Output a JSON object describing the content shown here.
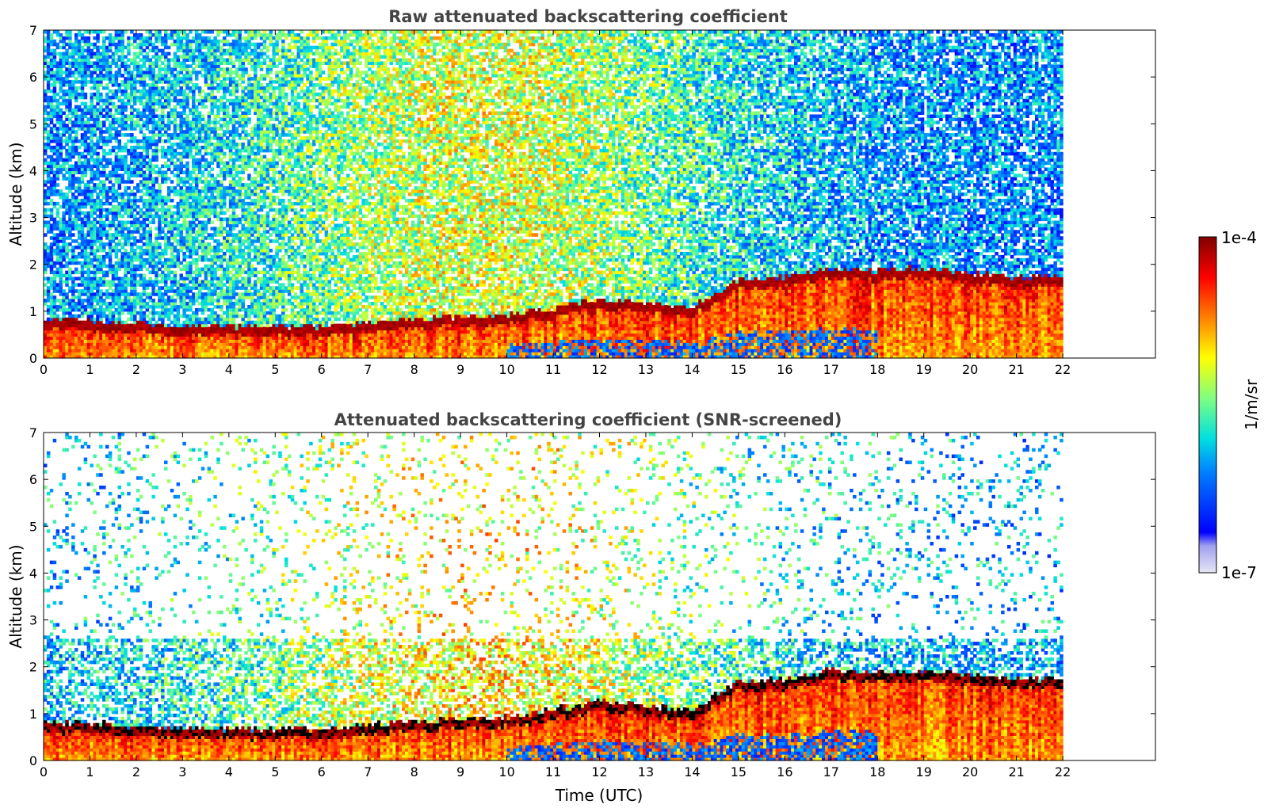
{
  "figure": {
    "colorbar": {
      "max_label": "1e-4",
      "min_label": "1e-7",
      "unit_label": "1/m/sr",
      "colormap": [
        "#e6e6f5",
        "#a0a0f0",
        "#0000ff",
        "#0080ff",
        "#00e0e0",
        "#80ff80",
        "#ffff00",
        "#ff8000",
        "#ff0000",
        "#800000"
      ]
    }
  },
  "chart_data": [
    {
      "type": "heatmap",
      "title": "Raw attenuated backscattering coefficient",
      "xlabel": "",
      "ylabel": "Altitude (km)",
      "xlim": [
        0,
        24
      ],
      "ylim": [
        0,
        7
      ],
      "xticks": [
        "0",
        "1",
        "2",
        "3",
        "4",
        "5",
        "6",
        "7",
        "8",
        "9",
        "10",
        "11",
        "12",
        "13",
        "14",
        "15",
        "16",
        "17",
        "18",
        "19",
        "20",
        "21",
        "22"
      ],
      "yticks": [
        "0",
        "1",
        "2",
        "3",
        "4",
        "5",
        "6",
        "7"
      ],
      "data_time_range": [
        0,
        22
      ],
      "colorscale": "log10",
      "vmin": 1e-07,
      "vmax": 0.0001,
      "layer_top_km": [
        [
          0,
          0.75
        ],
        [
          1,
          0.72
        ],
        [
          2,
          0.65
        ],
        [
          3,
          0.62
        ],
        [
          4,
          0.6
        ],
        [
          5,
          0.6
        ],
        [
          6,
          0.6
        ],
        [
          7,
          0.7
        ],
        [
          8,
          0.75
        ],
        [
          9,
          0.8
        ],
        [
          10,
          0.85
        ],
        [
          11,
          1.0
        ],
        [
          12,
          1.2
        ],
        [
          13,
          1.1
        ],
        [
          14,
          1.0
        ],
        [
          15,
          1.6
        ],
        [
          16,
          1.65
        ],
        [
          17,
          1.85
        ],
        [
          18,
          1.8
        ],
        [
          19,
          1.85
        ],
        [
          20,
          1.75
        ],
        [
          21,
          1.65
        ],
        [
          22,
          1.65
        ]
      ]
    },
    {
      "type": "heatmap",
      "title": "Attenuated backscattering coefficient (SNR-screened)",
      "xlabel": "Time (UTC)",
      "ylabel": "Altitude (km)",
      "xlim": [
        0,
        24
      ],
      "ylim": [
        0,
        7
      ],
      "xticks": [
        "0",
        "1",
        "2",
        "3",
        "4",
        "5",
        "6",
        "7",
        "8",
        "9",
        "10",
        "11",
        "12",
        "13",
        "14",
        "15",
        "16",
        "17",
        "18",
        "19",
        "20",
        "21",
        "22"
      ],
      "yticks": [
        "0",
        "1",
        "2",
        "3",
        "4",
        "5",
        "6",
        "7"
      ],
      "data_time_range": [
        0,
        22
      ],
      "colorscale": "log10",
      "vmin": 1e-07,
      "vmax": 0.0001,
      "layer_top_km": [
        [
          0,
          0.75
        ],
        [
          1,
          0.72
        ],
        [
          2,
          0.65
        ],
        [
          3,
          0.62
        ],
        [
          4,
          0.6
        ],
        [
          5,
          0.6
        ],
        [
          6,
          0.6
        ],
        [
          7,
          0.7
        ],
        [
          8,
          0.75
        ],
        [
          9,
          0.8
        ],
        [
          10,
          0.85
        ],
        [
          11,
          1.0
        ],
        [
          12,
          1.2
        ],
        [
          13,
          1.1
        ],
        [
          14,
          1.0
        ],
        [
          15,
          1.6
        ],
        [
          16,
          1.65
        ],
        [
          17,
          1.85
        ],
        [
          18,
          1.8
        ],
        [
          19,
          1.85
        ],
        [
          20,
          1.75
        ],
        [
          21,
          1.65
        ],
        [
          22,
          1.65
        ]
      ]
    }
  ]
}
